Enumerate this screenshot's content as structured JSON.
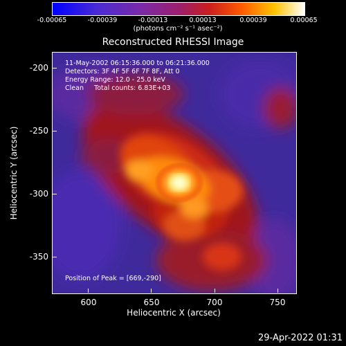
{
  "colorbar": {
    "ticks": [
      "-0.00065",
      "-0.00039",
      "-0.00013",
      "0.00013",
      "0.00039",
      "0.00065"
    ],
    "units": "(photons cm⁻² s⁻¹ asec⁻²)"
  },
  "title": "Reconstructed RHESSI Image",
  "info": {
    "line1": "11-May-2002 06:15:36.000 to 06:21:36.000",
    "line2": "Detectors: 3F 4F 5F 6F 7F 8F, Att 0",
    "line3": "Energy Range: 12.0 - 25.0 keV",
    "line4": "Clean     Total counts: 6.83E+03",
    "peak": "Position of Peak = [669,-290]"
  },
  "axes": {
    "xlabel": "Heliocentric X (arcsec)",
    "ylabel": "Heliocentric Y (arcsec)",
    "xticks": [
      "600",
      "650",
      "700",
      "750"
    ],
    "yticks": [
      "-200",
      "-250",
      "-300",
      "-350"
    ]
  },
  "timestamp": "29-Apr-2022 01:31",
  "colors": {
    "low": "#3a22a0",
    "mid": "#b4161c",
    "high": "#ffb000",
    "peak": "#ffff99"
  }
}
